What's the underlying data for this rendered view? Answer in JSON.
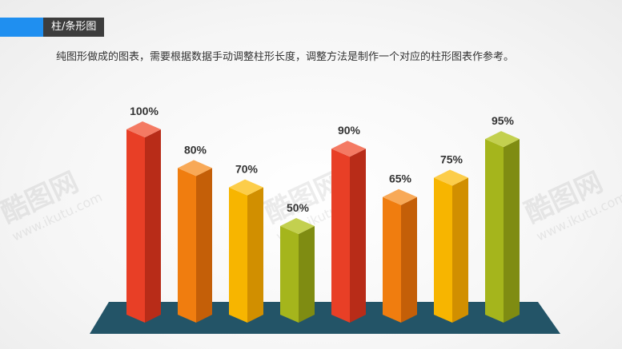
{
  "header": {
    "title": "柱/条形图",
    "subtitle": "纯图形做成的图表，需要根据数据手动调整柱形长度，调整方法是制作一个对应的柱形图表作参考。"
  },
  "watermark": {
    "logo": "酷图网",
    "url": "www.ikutu.com"
  },
  "colors": {
    "accent": "#1f8ff0",
    "title_bg": "#3d3d3d",
    "base": "#235467"
  },
  "chart_data": {
    "type": "bar",
    "title": "",
    "xlabel": "",
    "ylabel": "",
    "ylim": [
      0,
      100
    ],
    "grid": false,
    "legend": "none",
    "values": [
      100,
      80,
      70,
      50,
      90,
      65,
      75,
      95
    ],
    "labels": [
      "100%",
      "80%",
      "70%",
      "50%",
      "90%",
      "65%",
      "75%",
      "95%"
    ],
    "bar_colors": [
      "red",
      "orange",
      "yellow",
      "green",
      "red",
      "orange",
      "yellow",
      "green"
    ]
  }
}
